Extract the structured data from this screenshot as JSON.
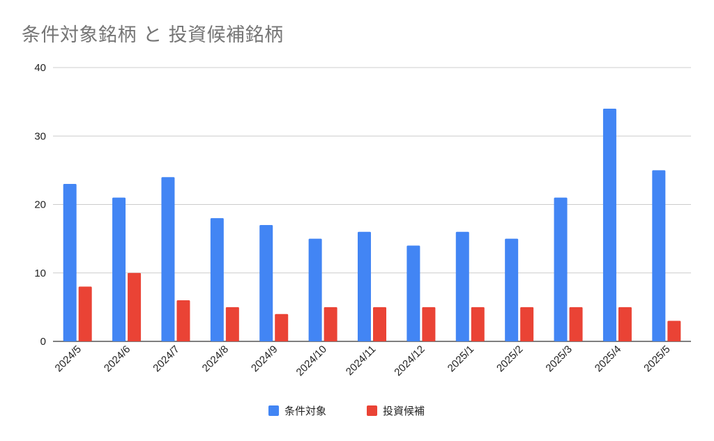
{
  "chart_data": {
    "type": "bar",
    "title": "条件対象銘柄 と 投資候補銘柄",
    "xlabel": "",
    "ylabel": "",
    "ylim": [
      0,
      40
    ],
    "yticks": [
      0,
      10,
      20,
      30,
      40
    ],
    "grid": true,
    "legend_position": "bottom",
    "categories": [
      "2024/5",
      "2024/6",
      "2024/7",
      "2024/8",
      "2024/9",
      "2024/10",
      "2024/11",
      "2024/12",
      "2025/1",
      "2025/2",
      "2025/3",
      "2025/4",
      "2025/5"
    ],
    "series": [
      {
        "name": "条件対象",
        "color": "#4285f4",
        "values": [
          23,
          21,
          24,
          18,
          17,
          15,
          16,
          14,
          16,
          15,
          21,
          34,
          25
        ]
      },
      {
        "name": "投資候補",
        "color": "#ea4335",
        "values": [
          8,
          10,
          6,
          5,
          4,
          5,
          5,
          5,
          5,
          5,
          5,
          5,
          3
        ]
      }
    ]
  }
}
